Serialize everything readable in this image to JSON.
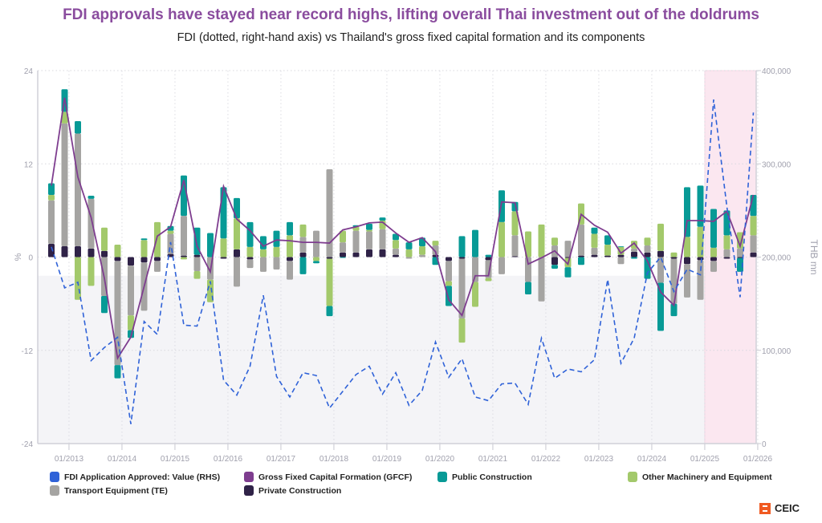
{
  "chart_data": {
    "type": "bar",
    "title": "FDI approvals have stayed near record highs, lifting overall Thai investment out of the doldrums",
    "subtitle": "FDI (dotted, right-hand axis) vs Thailand's gross fixed capital formation and its components",
    "ylabel": "%",
    "ylabel_right": "THB mn",
    "ylim": [
      -24,
      24
    ],
    "yticks": [
      "24",
      "12",
      "0",
      "-12",
      "-24"
    ],
    "ylim_right": [
      0,
      400000
    ],
    "yticks_right": [
      "400,000",
      "300,000",
      "200,000",
      "100,000",
      "0"
    ],
    "xticks": [
      "01/2013",
      "01/2014",
      "01/2015",
      "01/2016",
      "01/2017",
      "01/2018",
      "01/2019",
      "01/2020",
      "01/2021",
      "01/2022",
      "01/2023",
      "01/2024",
      "01/2025",
      "01/2026"
    ],
    "x_start": "2012Q3",
    "highlight_from": "01/2025",
    "grid": true,
    "legend_position": "bottom",
    "colors": {
      "fdi": "#2f62d8",
      "gfcf": "#7e3d8f",
      "public": "#079a96",
      "machinery": "#a3c96b",
      "transport": "#a5a4a2",
      "private": "#2f2247",
      "highlight": "#fbe7f0",
      "band": "#f4f4f7"
    },
    "series": [
      {
        "key": "fdi",
        "name": "FDI Application Approved: Value (RHS)",
        "kind": "line-dashed-rhs",
        "values": [
          211000,
          167000,
          173000,
          89000,
          103000,
          114000,
          21000,
          131000,
          117000,
          216000,
          127000,
          126000,
          174000,
          68000,
          52000,
          83000,
          159000,
          72000,
          50000,
          76000,
          73000,
          38000,
          56000,
          74000,
          83000,
          53000,
          76000,
          41000,
          57000,
          109000,
          71000,
          91000,
          50000,
          46000,
          64000,
          65000,
          42000,
          113000,
          70000,
          80000,
          77000,
          90000,
          176000,
          86000,
          113000,
          183000,
          200000,
          163000,
          187000,
          181000,
          369000,
          254000,
          157000,
          355000
        ]
      },
      {
        "key": "gfcf",
        "name": "Gross Fixed Capital Formation (GFCF)",
        "kind": "line",
        "values": [
          9.2,
          20.5,
          10.3,
          5.1,
          -2.7,
          -13.0,
          -10.3,
          -3.8,
          2.7,
          3.9,
          9.9,
          1.4,
          -1.9,
          9.1,
          4.9,
          3.4,
          1.4,
          2.2,
          2.1,
          1.9,
          1.9,
          1.8,
          3.5,
          3.9,
          4.4,
          4.5,
          3.1,
          1.9,
          2.5,
          0.7,
          -5.5,
          -7.5,
          -2.4,
          -2.4,
          7.1,
          7.0,
          -0.9,
          -0.1,
          0.8,
          -0.9,
          5.5,
          4.1,
          3.2,
          0.5,
          1.8,
          -0.5,
          -4.5,
          -6.2,
          4.7,
          4.7,
          4.6,
          5.9,
          1.4,
          8.0
        ]
      },
      {
        "key": "public",
        "name": "Public Construction",
        "kind": "bar",
        "values": [
          1.5,
          2.9,
          1.6,
          0.4,
          -2.2,
          -1.7,
          -1.0,
          0.2,
          0,
          0.6,
          5.2,
          3.5,
          3.1,
          6.6,
          2.6,
          3.2,
          1.7,
          2.1,
          1.7,
          -2.2,
          -0.3,
          -1.3,
          -0.1,
          0.2,
          0.8,
          0.4,
          0.8,
          0.9,
          1.1,
          -1.0,
          -2.6,
          2.7,
          3.5,
          0.3,
          4.1,
          1.2,
          -1.6,
          0,
          -0.5,
          -1.3,
          -1.0,
          0.8,
          1.2,
          0.1,
          -0.2,
          -2.8,
          -6.2,
          -1.6,
          6.4,
          5.3,
          5.0,
          3.2,
          -1.8,
          2.7
        ]
      },
      {
        "key": "machinery",
        "name": "Other Machinery and Equipment",
        "kind": "bar",
        "values": [
          0.7,
          1.5,
          -5.5,
          -3.7,
          3.0,
          1.6,
          -1.9,
          2.2,
          4.5,
          0.4,
          -0.3,
          -1.0,
          -2.9,
          2.4,
          4.0,
          1.3,
          1.0,
          1.3,
          2.8,
          1.6,
          -0.5,
          -6.1,
          1.5,
          0.5,
          0.2,
          1.1,
          1.1,
          1.0,
          1.1,
          0.6,
          -0.6,
          -3.1,
          -3.2,
          -0.4,
          4.5,
          3.1,
          3.3,
          4.2,
          1.0,
          -1.2,
          2.7,
          1.8,
          1.4,
          1.0,
          1.0,
          1.0,
          3.5,
          0.6,
          2.6,
          3.9,
          1.2,
          1.8,
          2.1,
          2.5
        ]
      },
      {
        "key": "transport",
        "name": "Transport Equipment (TE)",
        "kind": "bar",
        "values": [
          5.6,
          15.8,
          14.5,
          6.4,
          -5.0,
          -13.4,
          -6.4,
          -6.2,
          -1.4,
          2.6,
          5.1,
          -1.8,
          -2.9,
          0,
          -3.8,
          -1.1,
          -1.9,
          -1.6,
          -2.4,
          2.0,
          3.4,
          11.3,
          1.3,
          2.8,
          2.3,
          2.6,
          0.8,
          -0.2,
          0.3,
          1.2,
          -2.6,
          -7.7,
          -3.2,
          -2.3,
          -2.2,
          2.7,
          -3.2,
          -5.7,
          1.5,
          2.1,
          4.0,
          0.9,
          0,
          -0.9,
          0.4,
          0.9,
          -3.3,
          -5.8,
          -4.3,
          -5.1,
          -1.4,
          1.0,
          1.1,
          2.2
        ]
      },
      {
        "key": "private",
        "name": "Private Construction",
        "kind": "bar",
        "values": [
          1.7,
          1.4,
          1.4,
          1.1,
          0.8,
          -0.5,
          -1.1,
          -0.7,
          -0.5,
          0.4,
          0.2,
          0.3,
          0,
          -0.2,
          1.0,
          -0.3,
          0,
          0,
          -0.5,
          0.6,
          0,
          -0.2,
          0.6,
          0.6,
          1.0,
          1.0,
          0.3,
          0,
          0,
          0.3,
          -0.5,
          -0.2,
          0,
          -0.4,
          0,
          0.1,
          0,
          0,
          -1.0,
          -0.1,
          0.2,
          0.3,
          0.2,
          0.3,
          0.7,
          0.6,
          0.8,
          -0.2,
          -0.9,
          -0.4,
          -0.5,
          -0.2,
          -0.1,
          0.6
        ]
      }
    ],
    "legend_order": [
      "fdi",
      "gfcf",
      "public",
      "machinery",
      "transport",
      "private"
    ]
  },
  "branding": {
    "logo_text": "CEIC"
  }
}
